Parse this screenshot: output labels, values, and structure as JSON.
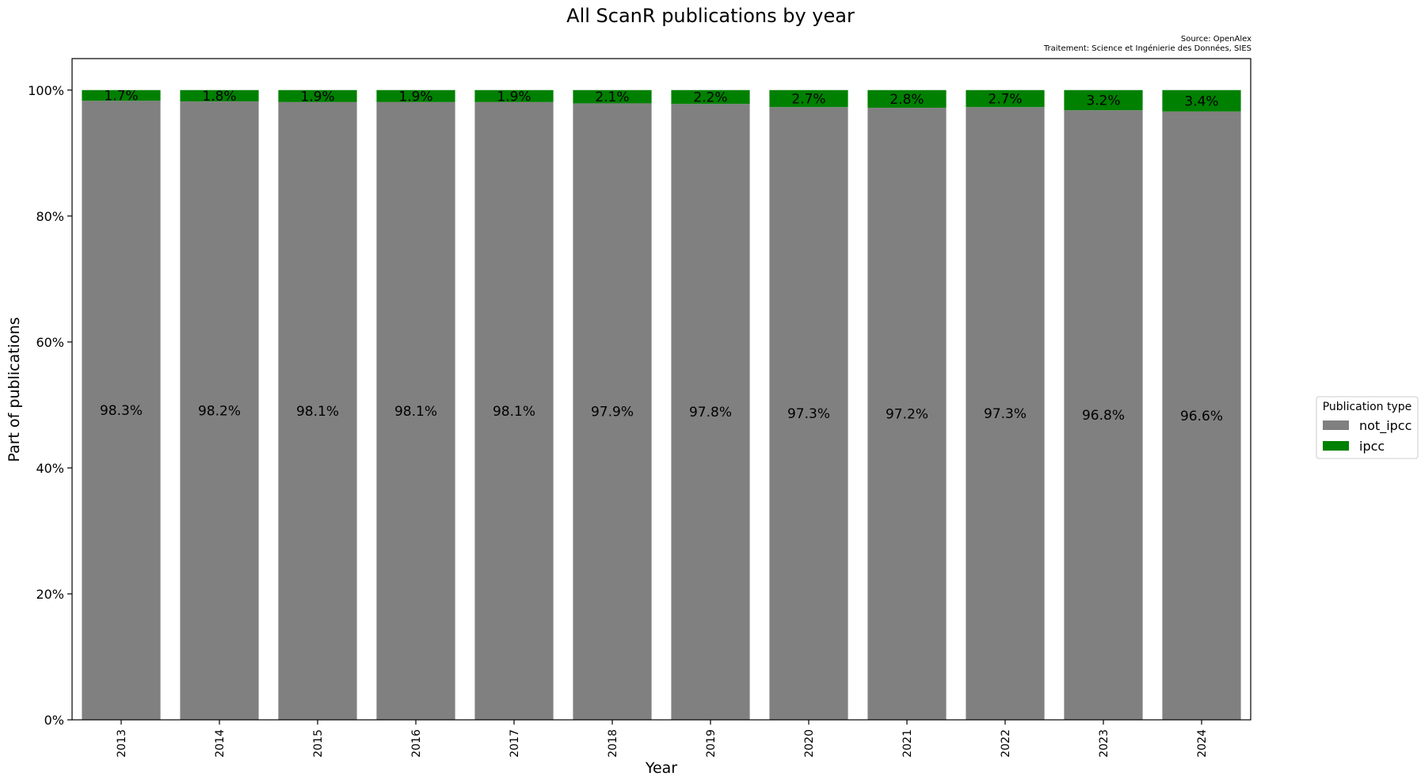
{
  "chart_data": {
    "type": "bar",
    "stacked": true,
    "title": "All ScanR publications by year",
    "source_lines": [
      "Source: OpenAlex",
      "Traitement: Science et Ingénierie des Données, SIES"
    ],
    "xlabel": "Year",
    "ylabel": "Part of publications",
    "categories": [
      "2013",
      "2014",
      "2015",
      "2016",
      "2017",
      "2018",
      "2019",
      "2020",
      "2021",
      "2022",
      "2023",
      "2024"
    ],
    "series": [
      {
        "name": "not_ipcc",
        "color": "#808080",
        "values": [
          98.3,
          98.2,
          98.1,
          98.1,
          98.1,
          97.9,
          97.8,
          97.3,
          97.2,
          97.3,
          96.8,
          96.6
        ],
        "labels": [
          "98.3%",
          "98.2%",
          "98.1%",
          "98.1%",
          "98.1%",
          "97.9%",
          "97.8%",
          "97.3%",
          "97.2%",
          "97.3%",
          "96.8%",
          "96.6%"
        ]
      },
      {
        "name": "ipcc",
        "color": "#008000",
        "values": [
          1.7,
          1.8,
          1.9,
          1.9,
          1.9,
          2.1,
          2.2,
          2.7,
          2.8,
          2.7,
          3.2,
          3.4
        ],
        "labels": [
          "1.7%",
          "1.8%",
          "1.9%",
          "1.9%",
          "1.9%",
          "2.1%",
          "2.2%",
          "2.7%",
          "2.8%",
          "2.7%",
          "3.2%",
          "3.4%"
        ]
      }
    ],
    "ylim": [
      0,
      105
    ],
    "yticks": [
      0,
      20,
      40,
      60,
      80,
      100
    ],
    "ytick_labels": [
      "0%",
      "20%",
      "40%",
      "60%",
      "80%",
      "100%"
    ],
    "grid": false,
    "legend": {
      "title": "Publication type",
      "placement": "right-center",
      "entries": [
        "not_ipcc",
        "ipcc"
      ]
    }
  }
}
